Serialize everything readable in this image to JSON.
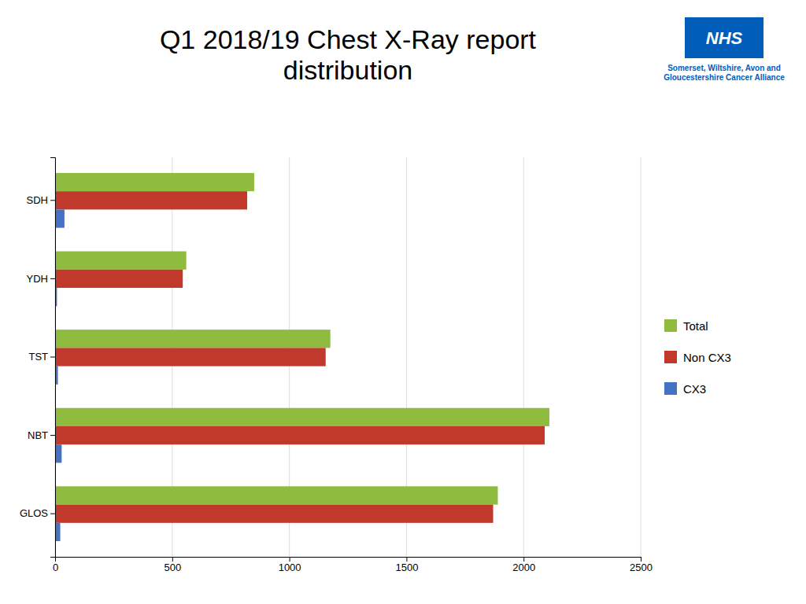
{
  "chart_data": {
    "type": "bar",
    "orientation": "horizontal",
    "title": "Q1 2018/19 Chest X-Ray report\ndistribution",
    "categories": [
      "GLOS",
      "NBT",
      "TST",
      "YDH",
      "SDH"
    ],
    "series": [
      {
        "name": "Total",
        "color": "#8fbc3f",
        "values": [
          1890,
          2110,
          1175,
          560,
          850
        ]
      },
      {
        "name": "Non CX3",
        "color": "#c0392b",
        "values": [
          1870,
          2090,
          1155,
          545,
          820
        ]
      },
      {
        "name": "CX3",
        "color": "#4472c4",
        "values": [
          22,
          28,
          12,
          8,
          40
        ]
      }
    ],
    "xlim": [
      0,
      2500
    ],
    "xticks": [
      0,
      500,
      1000,
      1500,
      2000,
      2500
    ],
    "grid": true,
    "legend": "right",
    "annotations": [
      {
        "text": "NHS",
        "color": "#005EB8"
      },
      {
        "text": "Somerset, Wiltshire, Avon and\nGloucestershire Cancer Alliance",
        "color": "#005EB8"
      }
    ]
  }
}
